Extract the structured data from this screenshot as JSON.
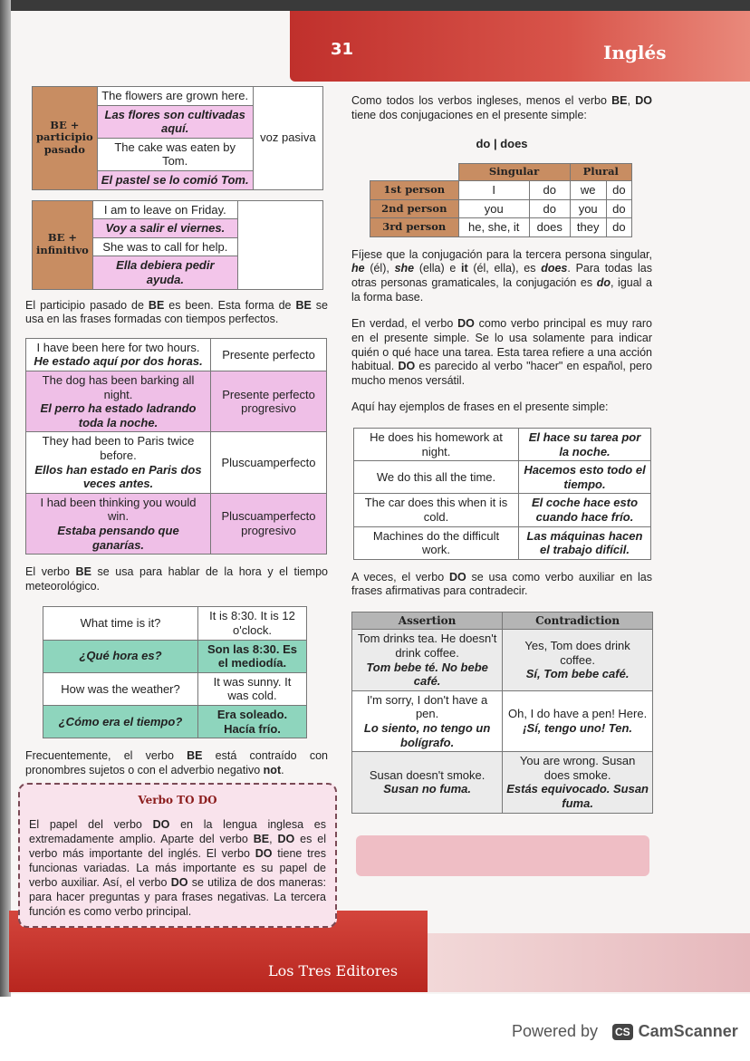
{
  "header": {
    "page_number": "31",
    "title": "Inglés"
  },
  "table_passive": {
    "label": "BE + participio pasado",
    "rows": [
      "The flowers are grown here.",
      "Las flores son cultivadas aquí.",
      "The cake was eaten by Tom.",
      "El pastel se lo comió Tom."
    ],
    "note": "voz pasiva"
  },
  "table_infinitive": {
    "label": "BE + infinitivo",
    "rows": [
      "I am to leave on Friday.",
      "Voy a salir el viernes.",
      "She was to call for help.",
      "Ella debiera pedir ayuda."
    ]
  },
  "para1": [
    {
      "t": "El participio pasado de "
    },
    {
      "t": "BE",
      "b": true
    },
    {
      "t": " es been. Esta forma de "
    },
    {
      "t": "BE",
      "b": true
    },
    {
      "t": " se usa en las frases formadas con tiempos perfectos."
    }
  ],
  "table_tenses": [
    {
      "en": "I have been here for two hours.",
      "es": "He estado aquí por dos horas.",
      "tense": "Presente perfecto"
    },
    {
      "en": "The dog has been barking all night.",
      "es": "El perro ha estado ladrando toda la noche.",
      "tense": "Presente perfecto progresivo"
    },
    {
      "en": "They had been to Paris twice before.",
      "es": "Ellos han estado en Paris dos veces antes.",
      "tense": "Pluscuamperfecto"
    },
    {
      "en": "I had been thinking you would win.",
      "es": "Estaba pensando que ganarías.",
      "tense": "Pluscuamperfecto progresivo"
    }
  ],
  "para2": [
    {
      "t": "El verbo "
    },
    {
      "t": "BE",
      "b": true
    },
    {
      "t": " se usa para hablar de la hora y el tiempo meteorológico."
    }
  ],
  "table_time": [
    {
      "q": "What time is it?",
      "a": "It is 8:30. It is 12 o'clock."
    },
    {
      "q": "¿Qué hora es?",
      "a": "Son las 8:30. Es el mediodía."
    },
    {
      "q": "How was the weather?",
      "a": "It was sunny. It was cold."
    },
    {
      "q": "¿Cómo era el tiempo?",
      "a": "Era soleado. Hacía frío."
    }
  ],
  "para3": [
    {
      "t": "Frecuentemente, el verbo "
    },
    {
      "t": "BE",
      "b": true
    },
    {
      "t": " está contraído con pronombres sujetos o con el adverbio negativo "
    },
    {
      "t": "not",
      "b": true
    },
    {
      "t": "."
    }
  ],
  "box": {
    "title": "Verbo TO DO",
    "text": [
      {
        "t": "El papel del verbo "
      },
      {
        "t": "DO",
        "b": true
      },
      {
        "t": " en la lengua inglesa es extremadamente amplio. Aparte del verbo "
      },
      {
        "t": "BE",
        "b": true
      },
      {
        "t": ", "
      },
      {
        "t": "DO",
        "b": true
      },
      {
        "t": " es el verbo más importante del inglés. El verbo "
      },
      {
        "t": "DO",
        "b": true
      },
      {
        "t": " tiene tres funcionas variadas. La más importante es su papel de verbo auxiliar. Así, el verbo "
      },
      {
        "t": "DO",
        "b": true
      },
      {
        "t": " se utiliza de dos maneras: para hacer preguntas y para frases negativas. La tercera función es como verbo principal."
      }
    ]
  },
  "para4": [
    {
      "t": "Como todos los verbos ingleses, menos el verbo "
    },
    {
      "t": "BE",
      "b": true
    },
    {
      "t": ", "
    },
    {
      "t": "DO",
      "b": true
    },
    {
      "t": " tiene dos conjugaciones en el presente simple:"
    }
  ],
  "do_does": "do | does",
  "conj": {
    "headers": [
      "Singular",
      "Plural"
    ],
    "rows": [
      {
        "person": "1st person",
        "s": "I",
        "sv": "do",
        "p": "we",
        "pv": "do"
      },
      {
        "person": "2nd person",
        "s": "you",
        "sv": "do",
        "p": "you",
        "pv": "do"
      },
      {
        "person": "3rd person",
        "s": "he, she, it",
        "sv": "does",
        "p": "they",
        "pv": "do"
      }
    ]
  },
  "para5": [
    {
      "t": "Fíjese que la conjugación para la tercera persona singular, "
    },
    {
      "t": "he",
      "b": true,
      "i": true
    },
    {
      "t": " (él), "
    },
    {
      "t": "she",
      "b": true,
      "i": true
    },
    {
      "t": " (ella) e "
    },
    {
      "t": "it",
      "b": true
    },
    {
      "t": " (él, ella), es "
    },
    {
      "t": "does",
      "b": true,
      "i": true
    },
    {
      "t": ". Para todas las otras personas gramaticales, la conjugación es "
    },
    {
      "t": "do",
      "b": true,
      "i": true
    },
    {
      "t": ", igual a la forma base."
    }
  ],
  "para6": [
    {
      "t": "En verdad, el verbo "
    },
    {
      "t": "DO",
      "b": true
    },
    {
      "t": " como verbo principal es muy raro en el presente simple. Se lo usa solamente para indicar quién o qué hace una tarea. Esta tarea refiere a una acción habitual. "
    },
    {
      "t": "DO",
      "b": true
    },
    {
      "t": " es parecido al verbo \"hacer\" en español, pero mucho menos versátil."
    }
  ],
  "para7": [
    {
      "t": "Aquí hay ejemplos de frases en el presente simple:"
    }
  ],
  "examples": [
    {
      "en": "He does his homework at night.",
      "es": "El hace su tarea por la noche."
    },
    {
      "en": "We do this all the time.",
      "es": "Hacemos esto todo el tiempo."
    },
    {
      "en": "The car does this when it is cold.",
      "es": "El coche hace esto cuando hace frío."
    },
    {
      "en": "Machines do the difficult work.",
      "es": "Las máquinas hacen el trabajo difícil."
    }
  ],
  "para8": [
    {
      "t": "A veces, el verbo "
    },
    {
      "t": "DO",
      "b": true
    },
    {
      "t": " se usa como verbo auxiliar en las frases afirmativas para contradecir."
    }
  ],
  "assert": {
    "headers": [
      "Assertion",
      "Contradiction"
    ],
    "rows": [
      {
        "a_en": "Tom drinks tea. He doesn't drink coffee.",
        "a_es": "Tom bebe té. No bebe café.",
        "c_en": "Yes, Tom does drink coffee.",
        "c_es": "Sí, Tom bebe café."
      },
      {
        "a_en": "I'm sorry, I don't have a pen.",
        "a_es": "Lo siento, no tengo un bolígrafo.",
        "c_en": "Oh, I do have a pen! Here.",
        "c_es": "¡Sí, tengo uno! Ten."
      },
      {
        "a_en": "Susan doesn't smoke.",
        "a_es": "Susan no fuma.",
        "c_en": "You are wrong. Susan does smoke.",
        "c_es": "Estás equivocado. Susan fuma."
      }
    ]
  },
  "footer": {
    "publisher": "Los Tres Editores"
  },
  "scanner": {
    "powered": "Powered by",
    "app": "CamScanner",
    "logo": "CS"
  }
}
